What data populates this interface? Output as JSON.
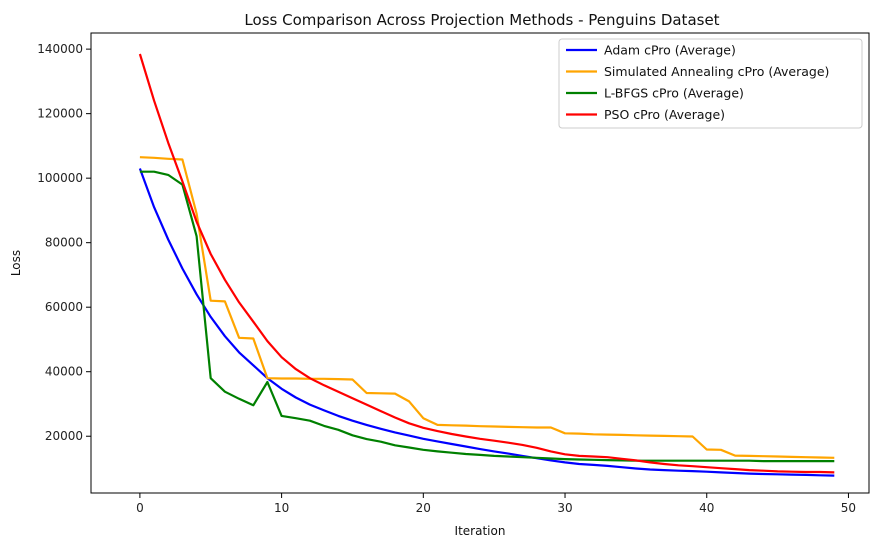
{
  "chart_data": {
    "type": "line",
    "title": "Loss Comparison Across Projection Methods - Penguins Dataset",
    "xlabel": "Iteration",
    "ylabel": "Loss",
    "xlim": [
      -3.45,
      51.45
    ],
    "ylim": [
      2400,
      145000
    ],
    "xticks": [
      0,
      10,
      20,
      30,
      40,
      50
    ],
    "yticks": [
      20000,
      40000,
      60000,
      80000,
      100000,
      120000,
      140000
    ],
    "grid": false,
    "legend_position": "top-right",
    "x": [
      0,
      1,
      2,
      3,
      4,
      5,
      6,
      7,
      8,
      9,
      10,
      11,
      12,
      13,
      14,
      15,
      16,
      17,
      18,
      19,
      20,
      21,
      22,
      23,
      24,
      25,
      26,
      27,
      28,
      29,
      30,
      31,
      32,
      33,
      34,
      35,
      36,
      37,
      38,
      39,
      40,
      41,
      42,
      43,
      44,
      45,
      46,
      47,
      48,
      49
    ],
    "series": [
      {
        "name": "Adam cPro (Average)",
        "color": "#0000ff",
        "values": [
          103000,
          91000,
          81000,
          72000,
          64000,
          57000,
          51000,
          46000,
          42000,
          38000,
          34700,
          32000,
          29800,
          28000,
          26300,
          24800,
          23500,
          22300,
          21200,
          20200,
          19200,
          18400,
          17600,
          16800,
          16000,
          15300,
          14600,
          13900,
          13200,
          12500,
          11900,
          11400,
          11100,
          10800,
          10400,
          10000,
          9700,
          9500,
          9300,
          9200,
          9000,
          8800,
          8600,
          8400,
          8300,
          8200,
          8100,
          8000,
          7900,
          7800
        ]
      },
      {
        "name": "Simulated Annealing cPro (Average)",
        "color": "#ffa500",
        "values": [
          106500,
          106300,
          106000,
          105800,
          89000,
          62000,
          61800,
          50500,
          50300,
          38000,
          37900,
          37900,
          37800,
          37800,
          37700,
          37600,
          33400,
          33300,
          33200,
          30800,
          25600,
          23500,
          23400,
          23300,
          23100,
          23000,
          22900,
          22800,
          22700,
          22700,
          20900,
          20800,
          20600,
          20500,
          20400,
          20300,
          20200,
          20100,
          20000,
          19900,
          15900,
          15800,
          14000,
          13900,
          13800,
          13700,
          13600,
          13500,
          13400,
          13300
        ]
      },
      {
        "name": "L-BFGS cPro (Average)",
        "color": "#008000",
        "values": [
          102000,
          102000,
          101000,
          98000,
          82000,
          38000,
          33800,
          31600,
          29600,
          36800,
          26300,
          25600,
          24800,
          23200,
          22000,
          20300,
          19100,
          18300,
          17200,
          16500,
          15800,
          15300,
          14900,
          14500,
          14200,
          13900,
          13700,
          13500,
          13300,
          13100,
          12900,
          12800,
          12700,
          12600,
          12500,
          12400,
          12400,
          12400,
          12400,
          12400,
          12400,
          12400,
          12400,
          12400,
          12300,
          12300,
          12300,
          12300,
          12300,
          12300
        ]
      },
      {
        "name": "PSO cPro (Average)",
        "color": "#ff0000",
        "values": [
          138500,
          124000,
          111000,
          99000,
          86500,
          76500,
          68500,
          61500,
          55500,
          49500,
          44500,
          40800,
          38000,
          35800,
          33800,
          31800,
          29800,
          27800,
          25800,
          24000,
          22600,
          21600,
          20700,
          19900,
          19200,
          18600,
          18000,
          17300,
          16400,
          15300,
          14400,
          13900,
          13700,
          13500,
          13000,
          12500,
          11900,
          11400,
          11000,
          10700,
          10400,
          10100,
          9800,
          9500,
          9300,
          9100,
          9000,
          8900,
          8900,
          8800
        ]
      }
    ]
  }
}
